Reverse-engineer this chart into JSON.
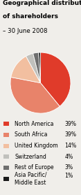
{
  "title_line1": "Geographical distribution",
  "title_line2": "of shareholders",
  "subtitle": "– 30 June 2008",
  "slices": [
    {
      "label": "North America",
      "pct": 39,
      "color": "#e03b2a"
    },
    {
      "label": "South Africa",
      "pct": 39,
      "color": "#e8836a"
    },
    {
      "label": "United Kingdom",
      "pct": 14,
      "color": "#f2bfa0"
    },
    {
      "label": "Switzerland",
      "pct": 4,
      "color": "#c0c0bc"
    },
    {
      "label": "Rest of Europe",
      "pct": 3,
      "color": "#6e6e6e"
    },
    {
      "label": "Asia Pacific/\nMiddle East",
      "pct": 1,
      "color": "#1a1a1a"
    }
  ],
  "title_fontsize": 6.5,
  "subtitle_fontsize": 6.2,
  "legend_fontsize": 5.6,
  "pct_fontsize": 5.6,
  "background_color": "#f0eeea"
}
